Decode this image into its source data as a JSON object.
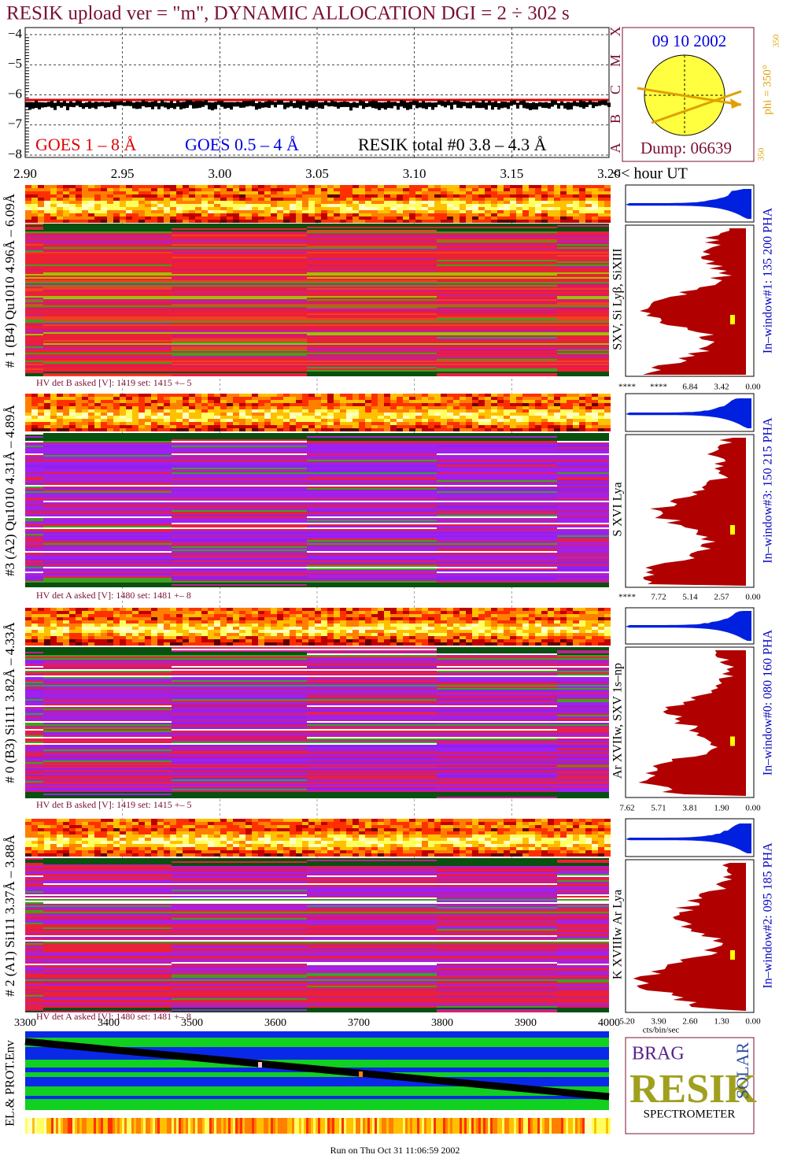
{
  "title": "RESIK upload ver = \"m\", DYNAMIC ALLOCATION  DGI =   2 ÷ 302 s",
  "goes": {
    "yticks": [
      "−4",
      "−5",
      "−6",
      "−7",
      "−8"
    ],
    "flare_classes": [
      "A",
      "B",
      "C",
      "M",
      "X"
    ],
    "legend": [
      "GOES 1 – 8 Å",
      "GOES 0.5 – 4 Å",
      "RESIK total #0  3.8 – 4.3 Å"
    ],
    "xticks": [
      "2.90",
      "2.95",
      "3.00",
      "3.05",
      "3.10",
      "3.15",
      "3.20"
    ],
    "xunit": "<< hour UT"
  },
  "sun": {
    "date": "09 10 2002",
    "phi": "phi = 350°",
    "phi_top": "350",
    "phi_bottom": "350",
    "dump": "Dump: 06639"
  },
  "panels": [
    {
      "label": "# 1 (B4) Qu1010 4.96Å – 6.09Å",
      "hv": "HV det B asked [V]:  1419 set:  1415 +–    5",
      "lines": "SXV, Si Lyβ, SiXIII",
      "pha_ticks": [
        "****",
        "****",
        "6.84",
        "3.42",
        "0.00"
      ],
      "window": "In–window#1:  135 200 PHA"
    },
    {
      "label": "#3 (A2) Qu1010  4.31Å – 4.89Å",
      "hv": "HV det A asked [V]:  1480 set:  1481 +–    8",
      "lines": "S XVI Lya",
      "pha_ticks": [
        "****",
        "7.72",
        "5.14",
        "2.57",
        "0.00"
      ],
      "window": "In–window#3:  150 215 PHA"
    },
    {
      "label": "# 0 (B3) Si111  3.82Å – 4.33Å",
      "hv": "HV det B asked [V]:  1419 set:  1415 +–    5",
      "lines": "Ar XVIIw,  SXV 1s–np",
      "pha_ticks": [
        "7.62",
        "5.71",
        "3.81",
        "1.90",
        "0.00"
      ],
      "window": "In–window#0:  080 160 PHA"
    },
    {
      "label": "# 2 (A1) Si111  3.37Å – 3.88Å",
      "hv": "HV det A asked [V]:  1480 set:  1481 +–    8",
      "lines": "K XVIIIw  Ar Lya",
      "pha_ticks": [
        "5.20",
        "3.90",
        "2.60",
        "1.30",
        "0.00"
      ],
      "window": "In–window#2:  095 185 PHA"
    }
  ],
  "pha_unit": "cts/bin/sec",
  "env": {
    "xticks": [
      "3300",
      "3400",
      "3500",
      "3600",
      "3700",
      "3800",
      "3900",
      "4000"
    ],
    "label": "EL.& PROT.Env"
  },
  "logo": {
    "top": "BRAG",
    "main": "RESIK",
    "side": "SOLAR",
    "text": "SPECTROMETER"
  },
  "footer": "Run on Thu Oct 31 11:06:59 2002"
}
